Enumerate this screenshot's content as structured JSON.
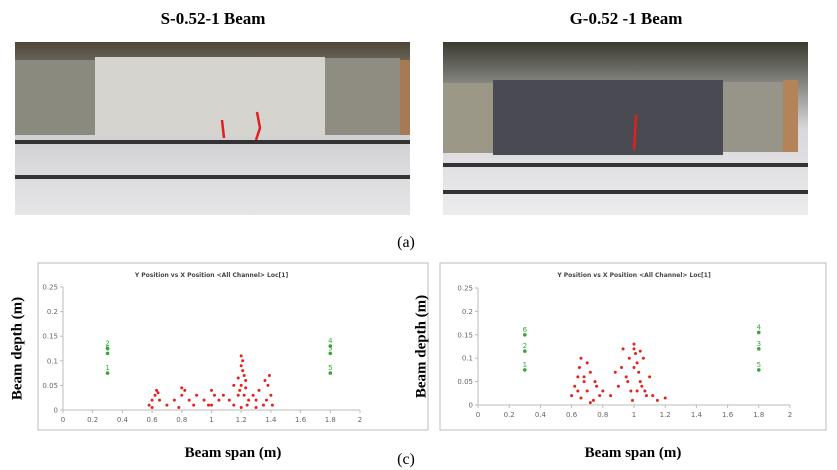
{
  "panels": [
    {
      "title": "S-0.52-1 Beam"
    },
    {
      "title": "G-0.52 -1 Beam"
    }
  ],
  "label_a": "(a)",
  "label_c": "(c)",
  "chart_data": [
    {
      "type": "scatter",
      "title": "Y Position vs X Position <All Channel> Loc[1]",
      "xlabel": "Beam span (m)",
      "ylabel": "Beam depth (m)",
      "xlim": [
        0,
        2
      ],
      "xticks": [
        0,
        0.2,
        0.4,
        0.6,
        0.8,
        1,
        1.2,
        1.4,
        1.6,
        1.8,
        2
      ],
      "ylim": [
        0,
        0.25
      ],
      "yticks": [
        0,
        0.05,
        0.1,
        0.15,
        0.2,
        0.25
      ],
      "grid": false,
      "series": [
        {
          "color": "#e8201c",
          "x": [
            0.58,
            0.6,
            0.62,
            0.63,
            0.65,
            0.6,
            0.64,
            0.7,
            0.75,
            0.78,
            0.8,
            0.82,
            0.85,
            0.88,
            0.9,
            0.8,
            0.95,
            0.98,
            1.0,
            1.02,
            1.05,
            1.0,
            1.08,
            1.12,
            1.15,
            1.18,
            1.2,
            1.2,
            1.21,
            1.22,
            1.23,
            1.2,
            1.19,
            1.22,
            1.25,
            1.24,
            1.18,
            1.21,
            1.2,
            1.23,
            1.28,
            1.3,
            1.32,
            1.35,
            1.36,
            1.38,
            1.4,
            1.37,
            1.39,
            1.41,
            1.3,
            1.15
          ],
          "values": [
            0.01,
            0.02,
            0.03,
            0.04,
            0.02,
            0.005,
            0.035,
            0.01,
            0.02,
            0.005,
            0.03,
            0.04,
            0.02,
            0.01,
            0.03,
            0.045,
            0.02,
            0.01,
            0.04,
            0.03,
            0.02,
            0.01,
            0.03,
            0.02,
            0.05,
            0.03,
            0.11,
            0.09,
            0.08,
            0.07,
            0.06,
            0.05,
            0.04,
            0.03,
            0.02,
            0.01,
            0.065,
            0.1,
            0.005,
            0.045,
            0.03,
            0.02,
            0.04,
            0.01,
            0.06,
            0.05,
            0.03,
            0.02,
            0.07,
            0.01,
            0.005,
            0.01
          ]
        },
        {
          "color": "#3aa33a",
          "x": [
            0.3,
            0.3,
            0.3,
            1.8,
            1.8,
            1.8
          ],
          "values": [
            0.125,
            0.115,
            0.075,
            0.13,
            0.115,
            0.075
          ],
          "labels": [
            "2",
            "6",
            "1",
            "4",
            "3",
            "5"
          ]
        }
      ]
    },
    {
      "type": "scatter",
      "title": "Y Position vs X Position <All Channel> Loc[1]",
      "xlabel": "Beam span (m)",
      "ylabel": "Beam depth (m)",
      "xlim": [
        0,
        2
      ],
      "xticks": [
        0,
        0.2,
        0.4,
        0.6,
        0.8,
        1,
        1.2,
        1.4,
        1.6,
        1.8,
        2
      ],
      "ylim": [
        0,
        0.25
      ],
      "yticks": [
        0,
        0.05,
        0.1,
        0.15,
        0.2,
        0.25
      ],
      "grid": false,
      "series": [
        {
          "color": "#e8201c",
          "x": [
            0.6,
            0.62,
            0.64,
            0.65,
            0.66,
            0.68,
            0.7,
            0.72,
            0.74,
            0.76,
            0.78,
            0.8,
            0.66,
            0.7,
            0.68,
            0.72,
            0.64,
            0.75,
            0.85,
            0.9,
            0.92,
            0.95,
            0.97,
            0.98,
            1.0,
            1.0,
            1.01,
            1.02,
            1.03,
            1.04,
            1.05,
            1.06,
            1.08,
            1.1,
            0.99,
            1.0,
            1.02,
            0.96,
            1.04,
            1.12,
            1.15,
            1.2,
            0.88,
            0.93,
            1.07
          ],
          "values": [
            0.02,
            0.04,
            0.06,
            0.08,
            0.1,
            0.05,
            0.03,
            0.07,
            0.01,
            0.04,
            0.02,
            0.03,
            0.015,
            0.09,
            0.06,
            0.005,
            0.03,
            0.05,
            0.02,
            0.04,
            0.08,
            0.06,
            0.1,
            0.03,
            0.13,
            0.12,
            0.11,
            0.09,
            0.07,
            0.05,
            0.04,
            0.1,
            0.02,
            0.06,
            0.01,
            0.08,
            0.03,
            0.05,
            0.115,
            0.02,
            0.01,
            0.015,
            0.07,
            0.12,
            0.03
          ]
        },
        {
          "color": "#3aa33a",
          "x": [
            0.3,
            0.3,
            0.3,
            1.8,
            1.8,
            1.8
          ],
          "values": [
            0.15,
            0.115,
            0.075,
            0.155,
            0.12,
            0.075
          ],
          "labels": [
            "6",
            "2",
            "1",
            "4",
            "3",
            "5"
          ]
        }
      ]
    }
  ]
}
